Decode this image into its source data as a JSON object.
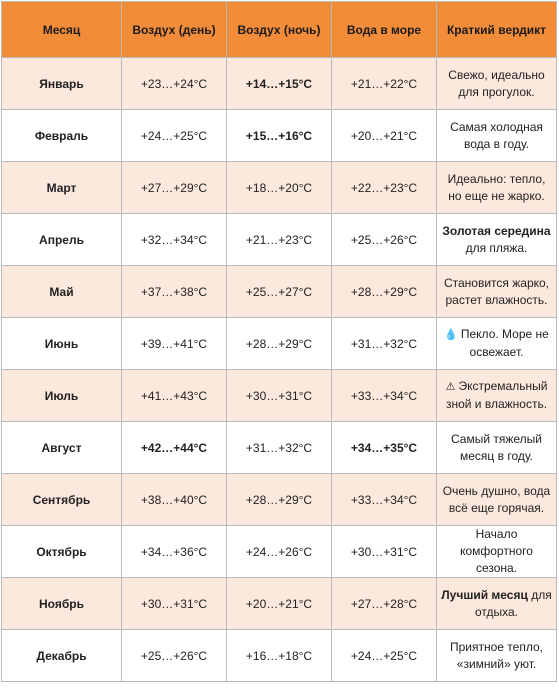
{
  "headers": [
    "Месяц",
    "Воздух (день)",
    "Воздух (ночь)",
    "Вода в море",
    "Краткий вердикт"
  ],
  "rows": [
    {
      "month": "Январь",
      "day": "+23…+24°C",
      "night": "+14…+15°C",
      "water": "+21…+22°C",
      "verdict_bold": "",
      "verdict": "Свежо, идеально для прогулок.",
      "icon": ""
    },
    {
      "month": "Февраль",
      "day": "+24…+25°C",
      "night": "+15…+16°C",
      "water": "+20…+21°C",
      "verdict_bold": "",
      "verdict": "Самая холодная вода в году.",
      "icon": ""
    },
    {
      "month": "Март",
      "day": "+27…+29°C",
      "night": "+18…+20°C",
      "water": "+22…+23°C",
      "verdict_bold": "",
      "verdict": "Идеально: тепло, но еще не жарко.",
      "icon": ""
    },
    {
      "month": "Апрель",
      "day": "+32…+34°C",
      "night": "+21…+23°C",
      "water": "+25…+26°C",
      "verdict_bold": "Золотая середина",
      "verdict": " для пляжа.",
      "icon": ""
    },
    {
      "month": "Май",
      "day": "+37…+38°C",
      "night": "+25…+27°C",
      "water": "+28…+29°C",
      "verdict_bold": "",
      "verdict": "Становится жарко, растет влажность.",
      "icon": ""
    },
    {
      "month": "Июнь",
      "day": "+39…+41°C",
      "night": "+28…+29°C",
      "water": "+31…+32°C",
      "verdict_bold": "",
      "verdict": "Пекло. Море не освежает.",
      "icon": "droplet-icon"
    },
    {
      "month": "Июль",
      "day": "+41…+43°C",
      "night": "+30…+31°C",
      "water": "+33…+34°C",
      "verdict_bold": "",
      "verdict": "Экстремальный зной и влажность.",
      "icon": "warning-icon"
    },
    {
      "month": "Август",
      "day": "+42…+44°C",
      "night": "+31…+32°C",
      "water": "+34…+35°C",
      "verdict_bold": "",
      "verdict": "Самый тяжелый месяц в году.",
      "icon": ""
    },
    {
      "month": "Сентябрь",
      "day": "+38…+40°C",
      "night": "+28…+29°C",
      "water": "+33…+34°C",
      "verdict_bold": "",
      "verdict": "Очень душно, вода всё еще горячая.",
      "icon": ""
    },
    {
      "month": "Октябрь",
      "day": "+34…+36°C",
      "night": "+24…+26°C",
      "water": "+30…+31°C",
      "verdict_bold": "",
      "verdict": "Начало комфортного сезона.",
      "icon": ""
    },
    {
      "month": "Ноябрь",
      "day": "+30…+31°C",
      "night": "+20…+21°C",
      "water": "+27…+28°C",
      "verdict_bold": "Лучший месяц",
      "verdict": " для отдыха.",
      "icon": ""
    },
    {
      "month": "Декабрь",
      "day": "+25…+26°C",
      "night": "+16…+18°C",
      "water": "+24…+25°C",
      "verdict_bold": "",
      "verdict": "Приятное тепло, «зимний» уют.",
      "icon": ""
    }
  ],
  "bold_cells": {
    "0": [
      "night"
    ],
    "1": [
      "night"
    ],
    "7": [
      "day",
      "water"
    ]
  },
  "colors": {
    "header": "#f28c38",
    "odd_row": "#fce8dc",
    "even_row": "#ffffff",
    "border": "#b9b9b9"
  }
}
